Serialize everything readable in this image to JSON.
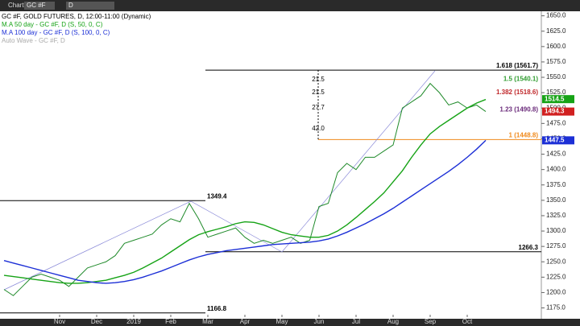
{
  "toolbar": {
    "window": "Chart",
    "symbol": "GC #F",
    "interval": "D"
  },
  "chart_data": {
    "type": "line",
    "legend": [
      "GC #F, GOLD FUTURES, D, 12:00-11:00 (Dynamic)",
      "M.A 50 day - GC #F, D (S, 50, 0, C)",
      "M.A 100 day - GC #F, D (S, 100, 0, C)",
      "Auto Wave - GC #F, D"
    ],
    "categories": [
      null,
      null,
      null,
      null,
      null,
      null,
      "Nov",
      null,
      null,
      null,
      "Dec",
      null,
      null,
      null,
      "2019",
      null,
      null,
      null,
      "Feb",
      null,
      null,
      null,
      "Mar",
      null,
      null,
      null,
      "Apr",
      null,
      null,
      null,
      "May",
      null,
      null,
      null,
      "Jun",
      null,
      null,
      null,
      "Jul",
      null,
      null,
      null,
      "Aug",
      null,
      null,
      null,
      "Sep",
      null,
      null,
      null,
      "Oct",
      null,
      null
    ],
    "series": [
      {
        "color": "#1f8a2a",
        "values": [
          1205,
          1195,
          1210,
          1225,
          1230,
          1225,
          1220,
          1210,
          1225,
          1240,
          1245,
          1250,
          1260,
          1280,
          1285,
          1290,
          1295,
          1310,
          1320,
          1315,
          1345,
          1320,
          1290,
          1295,
          1300,
          1305,
          1290,
          1280,
          1285,
          1280,
          1285,
          1290,
          1280,
          1285,
          1340,
          1345,
          1395,
          1410,
          1400,
          1420,
          1420,
          1430,
          1440,
          1500,
          1510,
          1520,
          1540,
          1525,
          1505,
          1510,
          1500,
          1505,
          1494.3
        ]
      },
      {
        "color": "#16a316",
        "values": [
          1228,
          1226,
          1224,
          1222,
          1220,
          1218,
          1216,
          1215,
          1215,
          1216,
          1218,
          1220,
          1224,
          1228,
          1233,
          1240,
          1248,
          1256,
          1266,
          1276,
          1286,
          1294,
          1299,
          1303,
          1307,
          1312,
          1315,
          1314,
          1310,
          1304,
          1298,
          1294,
          1292,
          1290,
          1290,
          1293,
          1300,
          1310,
          1322,
          1335,
          1348,
          1362,
          1380,
          1398,
          1420,
          1440,
          1458,
          1470,
          1480,
          1490,
          1500,
          1508,
          1514
        ]
      },
      {
        "color": "#1c2fd6",
        "values": [
          1252,
          1248,
          1244,
          1240,
          1236,
          1232,
          1228,
          1224,
          1220,
          1218,
          1216,
          1215,
          1216,
          1218,
          1221,
          1225,
          1230,
          1235,
          1241,
          1247,
          1253,
          1258,
          1262,
          1265,
          1268,
          1270,
          1272,
          1274,
          1276,
          1278,
          1279,
          1280,
          1281,
          1282,
          1284,
          1287,
          1292,
          1298,
          1305,
          1312,
          1320,
          1328,
          1337,
          1347,
          1357,
          1367,
          1377,
          1387,
          1397,
          1408,
          1420,
          1433,
          1447.5
        ]
      }
    ],
    "ylim": [
      1160,
      1660
    ],
    "yticks": [
      {
        "value": 1175,
        "label": "1175.0"
      },
      {
        "value": 1200,
        "label": "1200.0"
      },
      {
        "value": 1225,
        "label": "1225.0"
      },
      {
        "value": 1250,
        "label": "1250.0"
      },
      {
        "value": 1275,
        "label": "1275.0"
      },
      {
        "value": 1300,
        "label": "1300.0"
      },
      {
        "value": 1325,
        "label": "1325.0"
      },
      {
        "value": 1350,
        "label": "1350.0"
      },
      {
        "value": 1375,
        "label": "1375.0"
      },
      {
        "value": 1400,
        "label": "1400.0"
      },
      {
        "value": 1425,
        "label": "1425.0"
      },
      {
        "value": 1450,
        "label": "1450.0"
      },
      {
        "value": 1475,
        "label": "1475.0"
      },
      {
        "value": 1500,
        "label": "1500.0"
      },
      {
        "value": 1525,
        "label": "1525.0"
      },
      {
        "value": 1550,
        "label": "1550.0"
      },
      {
        "value": 1575,
        "label": "1575.0"
      },
      {
        "value": 1600,
        "label": "1600.0"
      },
      {
        "value": 1625,
        "label": "1625.0"
      },
      {
        "value": 1650,
        "label": "1650.0"
      }
    ],
    "levels": [
      {
        "value": 1561.7,
        "label": "1.618 (1561.7)",
        "color": "#000000",
        "line": true
      },
      {
        "value": 1540.1,
        "label": "1.5 (1540.1)",
        "color": "#2e9b2e",
        "line": false
      },
      {
        "value": 1518.6,
        "label": "1.382 (1518.6)",
        "color": "#c0282b",
        "line": false
      },
      {
        "value": 1490.8,
        "label": "1.23 (1490.8)",
        "color": "#6a2a7a",
        "line": false
      },
      {
        "value": 1448.8,
        "label": "1 (1448.8)",
        "color": "#f08a1c",
        "line": true
      },
      {
        "value": 1349.4,
        "label": "1349.4",
        "color": "#000000",
        "line": true
      },
      {
        "value": 1266.3,
        "label": "1266.3",
        "color": "#000000",
        "line": true
      },
      {
        "value": 1166.8,
        "label": "1166.8",
        "color": "#000000",
        "line": true
      }
    ],
    "wave_labels": [
      "21.5",
      "21.5",
      "27.7",
      "42.0"
    ],
    "price_tags": [
      {
        "value": 1514.5,
        "color": "#16a316"
      },
      {
        "value": 1494.3,
        "color": "#d12020"
      },
      {
        "value": 1447.5,
        "color": "#1c2fd6"
      }
    ]
  }
}
